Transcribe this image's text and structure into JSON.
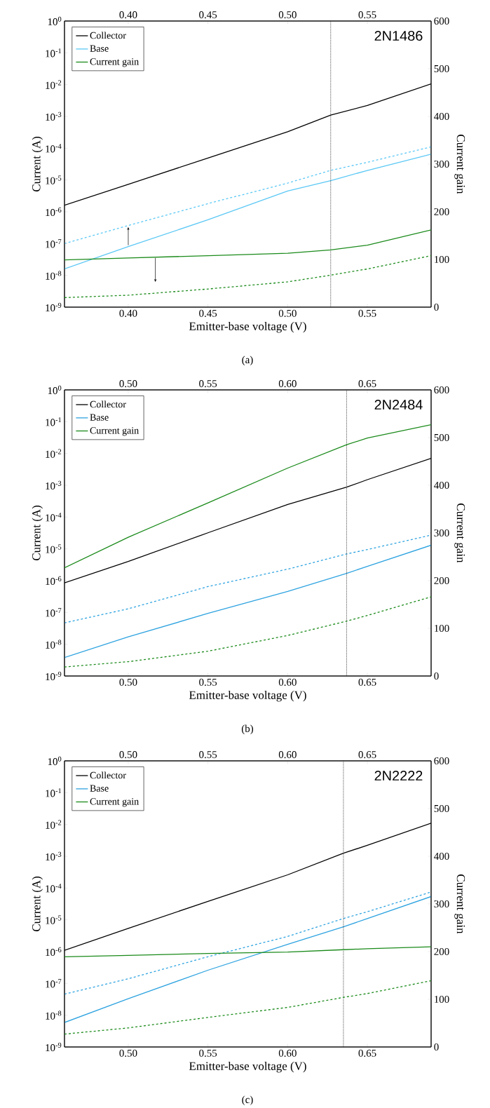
{
  "chart_data": [
    {
      "type": "line",
      "xlabel": "Emitter-base voltage (V)",
      "ylabel": "Current (A)",
      "y2label": "Current gain",
      "annotations": [
        "2N1486",
        "(a)"
      ],
      "x": [
        0.36,
        0.4,
        0.45,
        0.5,
        0.527,
        0.55,
        0.59
      ],
      "series": [
        {
          "name": "Collector",
          "color": "#000000",
          "values": [
            1.6e-06,
            7.3e-06,
            4.9e-05,
            0.00033,
            0.0011,
            0.0022,
            0.0105
          ]
        },
        {
          "name": "Base",
          "color": "#5bc8f5",
          "values": [
            1.6e-08,
            8e-08,
            5.6e-07,
            4.5e-06,
            9.5e-06,
            2e-05,
            6.5e-05
          ]
        },
        {
          "color": "#5bc8f5",
          "line_style": "dashed",
          "values": [
            1e-07,
            3.7e-07,
            1.8e-06,
            8e-06,
            2e-05,
            3.6e-05,
            0.00011
          ]
        },
        {
          "name": "Current gain",
          "color": "#1a8a1a",
          "axis": "y2",
          "values": [
            99,
            103,
            108,
            113,
            120,
            130,
            162
          ]
        },
        {
          "color": "#1a8a1a",
          "axis": "y2",
          "line_style": "dashed",
          "values": [
            20,
            25,
            38,
            53,
            67,
            80,
            108
          ]
        }
      ],
      "log": "y",
      "legend": "top left",
      "xlim": [
        0.36,
        0.59
      ],
      "xticks": [
        {
          "value": 0.4,
          "label": "0.40"
        },
        {
          "value": 0.45,
          "label": "0.45"
        },
        {
          "value": 0.5,
          "label": "0.50"
        },
        {
          "value": 0.55,
          "label": "0.55"
        }
      ],
      "x2lim": [
        0.36,
        0.59
      ],
      "x2ticks": [
        {
          "value": 0.4,
          "label": "0.40"
        },
        {
          "value": 0.45,
          "label": "0.45"
        },
        {
          "value": 0.5,
          "label": "0.50"
        },
        {
          "value": 0.55,
          "label": "0.55"
        }
      ],
      "ylim": [
        1e-09,
        1
      ],
      "yticks": [
        {
          "value": 1e-09,
          "label": "10$^{-9}$"
        },
        {
          "value": 1e-08,
          "label": "10$^{-8}$"
        },
        {
          "value": 1e-07,
          "label": "10$^{-7}$"
        },
        {
          "value": 1e-06,
          "label": "10$^{-6}$"
        },
        {
          "value": 1e-05,
          "label": "10$^{-5}$"
        },
        {
          "value": 0.0001,
          "label": "10$^{-4}$"
        },
        {
          "value": 0.001,
          "label": "10$^{-3}$"
        },
        {
          "value": 0.01,
          "label": "10$^{-2}$"
        },
        {
          "value": 0.1,
          "label": "10$^{-1}$"
        },
        {
          "value": 1,
          "label": "10$^{0}$"
        }
      ],
      "y2lim": [
        0,
        600
      ],
      "y2ticks": [
        0,
        100,
        200,
        300,
        400,
        500,
        600
      ],
      "ref_lines": [
        {
          "axis": "x",
          "value": 0.527,
          "color": "#000000",
          "line_style": "dotted"
        }
      ]
    },
    {
      "type": "line",
      "xlabel": "Emitter-base voltage (V)",
      "ylabel": "Current (A)",
      "y2label": "Current gain",
      "annotations": [
        "2N2484",
        "(b)"
      ],
      "x": [
        0.46,
        0.5,
        0.55,
        0.6,
        0.637,
        0.65,
        0.69
      ],
      "series": [
        {
          "name": "Collector",
          "color": "#000000",
          "values": [
            8.5e-07,
            4e-06,
            3.2e-05,
            0.00025,
            0.00087,
            0.0015,
            0.007
          ]
        },
        {
          "name": "Base",
          "color": "#2ea3e0",
          "values": [
            3.8e-09,
            1.7e-08,
            9.3e-08,
            4.6e-07,
            1.7e-06,
            2.8e-06,
            1.3e-05
          ]
        },
        {
          "color": "#2ea3e0",
          "line_style": "dashed",
          "values": [
            4.7e-08,
            1.3e-07,
            6.5e-07,
            2.3e-06,
            6.9e-06,
            9.5e-06,
            2.7e-05
          ]
        },
        {
          "name": "Current gain",
          "color": "#1a8a1a",
          "axis": "y2",
          "values": [
            227,
            291,
            363,
            436,
            485,
            499,
            527
          ]
        },
        {
          "color": "#1a8a1a",
          "axis": "y2",
          "line_style": "dashed",
          "values": [
            19,
            30,
            52,
            85,
            115,
            127,
            166
          ]
        }
      ],
      "log": "y",
      "legend": "top left",
      "xlim": [
        0.46,
        0.69
      ],
      "xticks": [
        {
          "value": 0.5,
          "label": "0.50"
        },
        {
          "value": 0.55,
          "label": "0.55"
        },
        {
          "value": 0.6,
          "label": "0.60"
        },
        {
          "value": 0.65,
          "label": "0.65"
        }
      ],
      "x2lim": [
        0.46,
        0.69
      ],
      "x2ticks": [
        {
          "value": 0.5,
          "label": "0.50"
        },
        {
          "value": 0.55,
          "label": "0.55"
        },
        {
          "value": 0.6,
          "label": "0.60"
        },
        {
          "value": 0.65,
          "label": "0.65"
        }
      ],
      "ylim": [
        1e-09,
        1
      ],
      "yticks": [
        {
          "value": 1e-09,
          "label": "10$^{-9}$"
        },
        {
          "value": 1e-08,
          "label": "10$^{-8}$"
        },
        {
          "value": 1e-07,
          "label": "10$^{-7}$"
        },
        {
          "value": 1e-06,
          "label": "10$^{-6}$"
        },
        {
          "value": 1e-05,
          "label": "10$^{-5}$"
        },
        {
          "value": 0.0001,
          "label": "10$^{-4}$"
        },
        {
          "value": 0.001,
          "label": "10$^{-3}$"
        },
        {
          "value": 0.01,
          "label": "10$^{-2}$"
        },
        {
          "value": 0.1,
          "label": "10$^{-1}$"
        },
        {
          "value": 1,
          "label": "10$^{0}$"
        }
      ],
      "y2lim": [
        0,
        600
      ],
      "y2ticks": [
        0,
        100,
        200,
        300,
        400,
        500,
        600
      ],
      "ref_lines": [
        {
          "axis": "x",
          "value": 0.637,
          "color": "#000000",
          "line_style": "dotted"
        }
      ]
    },
    {
      "type": "line",
      "xlabel": "Emitter-base voltage (V)",
      "ylabel": "Current (A)",
      "y2label": "Current gain",
      "annotations": [
        "2N2222",
        "(c)"
      ],
      "x": [
        0.46,
        0.5,
        0.55,
        0.6,
        0.635,
        0.65,
        0.69
      ],
      "series": [
        {
          "name": "Collector",
          "color": "#000000",
          "values": [
            1.1e-06,
            5.4e-06,
            3.8e-05,
            0.00026,
            0.00125,
            0.0022,
            0.011
          ]
        },
        {
          "name": "Base",
          "color": "#2ea3e0",
          "values": [
            5.9e-09,
            3.3e-08,
            2.6e-07,
            1.7e-06,
            6e-06,
            1.1e-05,
            5.4e-05
          ]
        },
        {
          "color": "#2ea3e0",
          "line_style": "dashed",
          "values": [
            4.6e-08,
            1.4e-07,
            6.9e-07,
            3e-06,
            1.1e-05,
            1.8e-05,
            7.5e-05
          ]
        },
        {
          "name": "Current gain",
          "color": "#1a8a1a",
          "axis": "y2",
          "values": [
            189,
            192,
            196,
            199,
            204,
            206,
            210
          ]
        },
        {
          "color": "#1a8a1a",
          "axis": "y2",
          "line_style": "dashed",
          "values": [
            27,
            40,
            62,
            83,
            104,
            112,
            139
          ]
        }
      ],
      "log": "y",
      "legend": "top left",
      "xlim": [
        0.46,
        0.69
      ],
      "xticks": [
        {
          "value": 0.5,
          "label": "0.50"
        },
        {
          "value": 0.55,
          "label": "0.55"
        },
        {
          "value": 0.6,
          "label": "0.60"
        },
        {
          "value": 0.65,
          "label": "0.65"
        }
      ],
      "x2lim": [
        0.46,
        0.69
      ],
      "x2ticks": [
        {
          "value": 0.5,
          "label": "0.50"
        },
        {
          "value": 0.55,
          "label": "0.55"
        },
        {
          "value": 0.6,
          "label": "0.60"
        },
        {
          "value": 0.65,
          "label": "0.65"
        }
      ],
      "ylim": [
        1e-09,
        1
      ],
      "yticks": [
        {
          "value": 1e-09,
          "label": "10$^{-9}$"
        },
        {
          "value": 1e-08,
          "label": "10$^{-8}$"
        },
        {
          "value": 1e-07,
          "label": "10$^{-7}$"
        },
        {
          "value": 1e-06,
          "label": "10$^{-6}$"
        },
        {
          "value": 1e-05,
          "label": "10$^{-5}$"
        },
        {
          "value": 0.0001,
          "label": "10$^{-4}$"
        },
        {
          "value": 0.001,
          "label": "10$^{-3}$"
        },
        {
          "value": 0.01,
          "label": "10$^{-2}$"
        },
        {
          "value": 0.1,
          "label": "10$^{-1}$"
        },
        {
          "value": 1,
          "label": "10$^{0}$"
        }
      ],
      "y2lim": [
        0,
        600
      ],
      "y2ticks": [
        0,
        100,
        200,
        300,
        400,
        500,
        600
      ],
      "ref_lines": [
        {
          "axis": "x",
          "value": 0.635,
          "color": "#000000",
          "line_style": "dotted"
        }
      ]
    }
  ]
}
